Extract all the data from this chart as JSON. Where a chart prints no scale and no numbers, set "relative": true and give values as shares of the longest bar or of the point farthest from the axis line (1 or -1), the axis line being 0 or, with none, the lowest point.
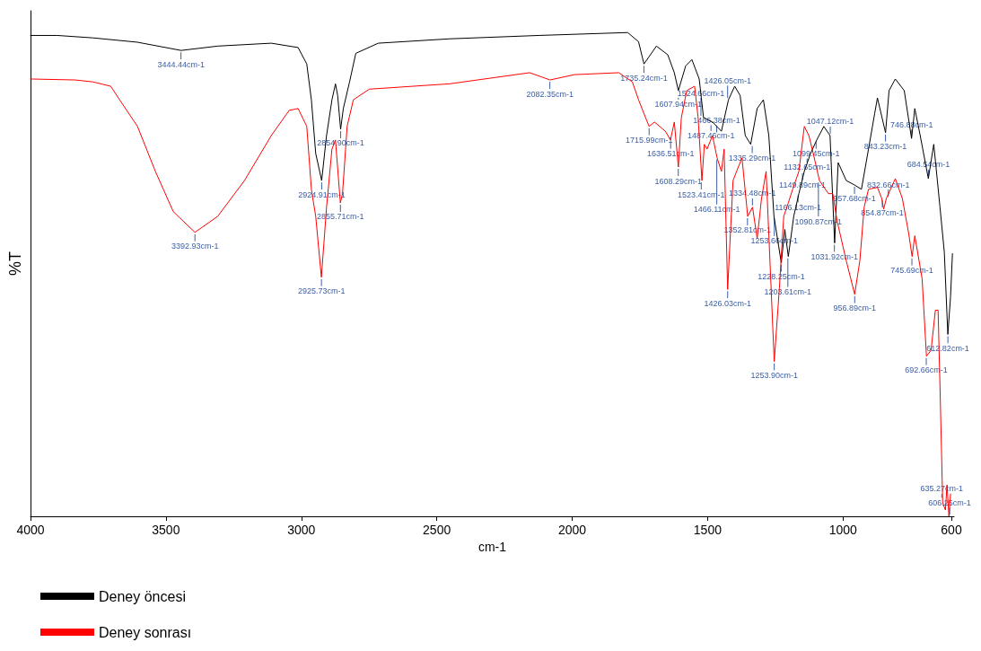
{
  "chart_data": {
    "type": "line",
    "relative": true,
    "xlabel": "cm-1",
    "ylabel": "%T",
    "xlim": [
      4000,
      590
    ],
    "xticks": [
      4000,
      3500,
      3000,
      2500,
      2000,
      1500,
      1000,
      600
    ],
    "grid": false,
    "legend": "bottom",
    "marker": "none",
    "line_style": "solid",
    "series": [
      {
        "name": "Deney öncesi",
        "color": "#000000",
        "x": [
          4000,
          3901,
          3770,
          3605,
          3444,
          3309,
          3111,
          3012,
          2980,
          2963,
          2947,
          2925,
          2907,
          2887,
          2874,
          2866,
          2855,
          2845,
          2822,
          2799,
          2716,
          2453,
          2124,
          1795,
          1755,
          1735,
          1689,
          1647,
          1623,
          1608,
          1581,
          1558,
          1531,
          1515,
          1482,
          1449,
          1423,
          1400,
          1380,
          1361,
          1341,
          1317,
          1294,
          1274,
          1255,
          1228,
          1215,
          1202,
          1182,
          1163,
          1143,
          1120,
          1097,
          1071,
          1048,
          1031,
          1018,
          988,
          958,
          932,
          906,
          883,
          873,
          843,
          830,
          807,
          774,
          747,
          735,
          715,
          685,
          665,
          642,
          626,
          613,
          603,
          596
        ],
        "values": [
          0.994,
          0.994,
          0.989,
          0.98,
          0.963,
          0.972,
          0.978,
          0.969,
          0.935,
          0.861,
          0.75,
          0.694,
          0.787,
          0.861,
          0.894,
          0.87,
          0.8,
          0.843,
          0.898,
          0.957,
          0.978,
          0.987,
          0.994,
          1.0,
          0.981,
          0.935,
          0.972,
          0.954,
          0.917,
          0.88,
          0.931,
          0.944,
          0.904,
          0.824,
          0.815,
          0.796,
          0.861,
          0.889,
          0.87,
          0.787,
          0.769,
          0.843,
          0.861,
          0.787,
          0.62,
          0.524,
          0.593,
          0.537,
          0.62,
          0.667,
          0.713,
          0.75,
          0.778,
          0.806,
          0.787,
          0.565,
          0.731,
          0.694,
          0.685,
          0.676,
          0.759,
          0.833,
          0.865,
          0.793,
          0.88,
          0.904,
          0.88,
          0.781,
          0.843,
          0.787,
          0.698,
          0.769,
          0.639,
          0.546,
          0.376,
          0.454,
          0.543
        ]
      },
      {
        "name": "Deney sonrası",
        "color": "#ff0000",
        "x": [
          4000,
          3835,
          3770,
          3704,
          3671,
          3605,
          3539,
          3473,
          3393,
          3309,
          3210,
          3111,
          3045,
          3012,
          2980,
          2963,
          2947,
          2926,
          2907,
          2887,
          2874,
          2856,
          2848,
          2831,
          2808,
          2749,
          2453,
          2157,
          2082,
          1992,
          1828,
          1778,
          1755,
          1729,
          1716,
          1696,
          1656,
          1637,
          1623,
          1608,
          1597,
          1577,
          1548,
          1535,
          1521,
          1512,
          1502,
          1482,
          1465,
          1449,
          1439,
          1426,
          1416,
          1406,
          1393,
          1373,
          1352,
          1334,
          1317,
          1301,
          1284,
          1254,
          1235,
          1219,
          1202,
          1186,
          1163,
          1143,
          1126,
          1110,
          1087,
          1054,
          1038,
          1022,
          988,
          957,
          938,
          922,
          906,
          873,
          857,
          850,
          840,
          807,
          781,
          757,
          745,
          735,
          708,
          692,
          675,
          659,
          649,
          642,
          632,
          622,
          616,
          609,
          603
        ],
        "values": [
          0.904,
          0.902,
          0.898,
          0.889,
          0.861,
          0.806,
          0.713,
          0.63,
          0.587,
          0.62,
          0.694,
          0.787,
          0.839,
          0.843,
          0.806,
          0.676,
          0.62,
          0.494,
          0.639,
          0.759,
          0.778,
          0.648,
          0.667,
          0.806,
          0.861,
          0.883,
          0.894,
          0.917,
          0.902,
          0.913,
          0.917,
          0.898,
          0.861,
          0.824,
          0.806,
          0.815,
          0.796,
          0.778,
          0.815,
          0.722,
          0.824,
          0.88,
          0.889,
          0.824,
          0.694,
          0.769,
          0.759,
          0.787,
          0.741,
          0.713,
          0.759,
          0.469,
          0.583,
          0.694,
          0.713,
          0.741,
          0.62,
          0.639,
          0.574,
          0.657,
          0.713,
          0.32,
          0.472,
          0.62,
          0.648,
          0.676,
          0.713,
          0.806,
          0.787,
          0.75,
          0.694,
          0.667,
          0.667,
          0.611,
          0.528,
          0.459,
          0.528,
          0.639,
          0.676,
          0.68,
          0.657,
          0.635,
          0.657,
          0.698,
          0.657,
          0.583,
          0.537,
          0.58,
          0.491,
          0.331,
          0.343,
          0.426,
          0.426,
          0.269,
          0.028,
          0.013,
          0.065,
          0.0,
          0.046
        ]
      }
    ],
    "annotations": [
      {
        "text": "3444.44cm-1",
        "x": 3444.44,
        "y": 0.963
      },
      {
        "text": "3392.93cm-1",
        "x": 3392.93,
        "y": 0.587
      },
      {
        "text": "2924.91cm-1",
        "x": 2924.91,
        "y": 0.694
      },
      {
        "text": "2854.90cm-1",
        "x": 2854.9,
        "y": 0.8
      },
      {
        "text": "2855.71cm-1",
        "x": 2855.71,
        "y": 0.648
      },
      {
        "text": "2925.73cm-1",
        "x": 2925.73,
        "y": 0.494
      },
      {
        "text": "2082.35cm-1",
        "x": 2082.35,
        "y": 0.902
      },
      {
        "text": "1735.24cm-1",
        "x": 1735.24,
        "y": 0.935
      },
      {
        "text": "1715.99cm-1",
        "x": 1715.99,
        "y": 0.806
      },
      {
        "text": "1607.94cm-1",
        "x": 1607.94,
        "y": 0.88
      },
      {
        "text": "1636.51cm-1",
        "x": 1636.51,
        "y": 0.778
      },
      {
        "text": "1608.29cm-1",
        "x": 1608.29,
        "y": 0.722
      },
      {
        "text": "1487.46cm-1",
        "x": 1487.46,
        "y": 0.815
      },
      {
        "text": "1466.38cm-1",
        "x": 1466.38,
        "y": 0.79
      },
      {
        "text": "1524.66cm-1",
        "x": 1524.66,
        "y": 0.824
      },
      {
        "text": "1523.41cm-1",
        "x": 1523.41,
        "y": 0.694
      },
      {
        "text": "1466.11cm-1",
        "x": 1466.11,
        "y": 0.741
      },
      {
        "text": "1426.05cm-1",
        "x": 1426.05,
        "y": 0.861
      },
      {
        "text": "1426.03cm-1",
        "x": 1426.03,
        "y": 0.469
      },
      {
        "text": "1352.81cm-1",
        "x": 1352.81,
        "y": 0.62
      },
      {
        "text": "1335.29cm-1",
        "x": 1335.29,
        "y": 0.769
      },
      {
        "text": "1334.48cm-1",
        "x": 1334.48,
        "y": 0.639
      },
      {
        "text": "1253.66cm-1",
        "x": 1253.66,
        "y": 0.62
      },
      {
        "text": "1253.90cm-1",
        "x": 1253.9,
        "y": 0.32
      },
      {
        "text": "1228.25cm-1",
        "x": 1228.25,
        "y": 0.524
      },
      {
        "text": "1203.61cm-1",
        "x": 1203.61,
        "y": 0.537
      },
      {
        "text": "1166.13cm-1",
        "x": 1166.13,
        "y": 0.667
      },
      {
        "text": "1149.89cm-1",
        "x": 1149.89,
        "y": 0.713
      },
      {
        "text": "1132.65cm-1",
        "x": 1132.65,
        "y": 0.75
      },
      {
        "text": "1099.45cm-1",
        "x": 1099.45,
        "y": 0.778
      },
      {
        "text": "1090.87cm-1",
        "x": 1090.87,
        "y": 0.694
      },
      {
        "text": "1047.12cm-1",
        "x": 1047.12,
        "y": 0.787
      },
      {
        "text": "1031.92cm-1",
        "x": 1031.92,
        "y": 0.565
      },
      {
        "text": "957.68cm-1",
        "x": 957.68,
        "y": 0.685
      },
      {
        "text": "956.89cm-1",
        "x": 956.89,
        "y": 0.459
      },
      {
        "text": "854.87cm-1",
        "x": 854.87,
        "y": 0.657
      },
      {
        "text": "843.23cm-1",
        "x": 843.23,
        "y": 0.793
      },
      {
        "text": "832.66cm-1",
        "x": 832.66,
        "y": 0.657
      },
      {
        "text": "746.88cm-1",
        "x": 746.88,
        "y": 0.781
      },
      {
        "text": "745.69cm-1",
        "x": 745.69,
        "y": 0.537
      },
      {
        "text": "692.66cm-1",
        "x": 692.66,
        "y": 0.331
      },
      {
        "text": "684.54cm-1",
        "x": 684.54,
        "y": 0.698
      },
      {
        "text": "635.27cm-1",
        "x": 635.27,
        "y": 0.028
      },
      {
        "text": "612.82cm-1",
        "x": 612.82,
        "y": 0.376
      },
      {
        "text": "606.25cm-1",
        "x": 606.25,
        "y": 0.0
      }
    ]
  }
}
